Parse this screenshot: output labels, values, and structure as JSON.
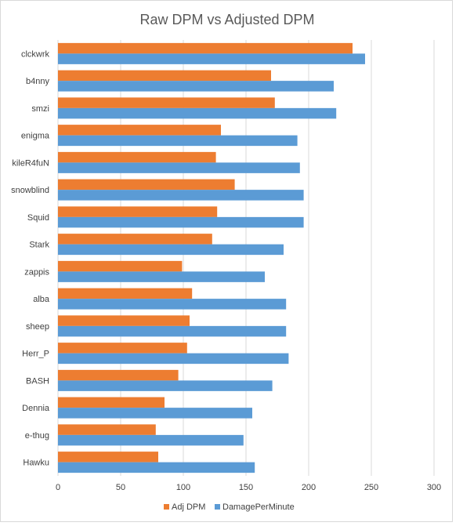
{
  "chart_data": {
    "type": "bar",
    "orientation": "horizontal",
    "title": "Raw DPM vs Adjusted DPM",
    "xlabel": "",
    "ylabel": "",
    "categories": [
      "clckwrk",
      "b4nny",
      "smzi",
      "enigma",
      "kileR4fuN",
      "snowblind",
      "Squid",
      "Stark",
      "zappis",
      "alba",
      "sheep",
      "Herr_P",
      "BASH",
      "Dennia",
      "e-thug",
      "Hawku"
    ],
    "series": [
      {
        "name": "Adj DPM",
        "color": "#ed7d31",
        "values": [
          235,
          170,
          173,
          130,
          126,
          141,
          127,
          123,
          99,
          107,
          105,
          103,
          96,
          85,
          78,
          80
        ]
      },
      {
        "name": "DamagePerMinute",
        "color": "#5b9bd5",
        "values": [
          245,
          220,
          222,
          191,
          193,
          196,
          196,
          180,
          165,
          182,
          182,
          184,
          171,
          155,
          148,
          157
        ]
      }
    ],
    "xlim": [
      0,
      300
    ],
    "xticks": [
      "0",
      "50",
      "100",
      "150",
      "200",
      "250",
      "300"
    ],
    "grid": true,
    "legend_position": "bottom"
  }
}
